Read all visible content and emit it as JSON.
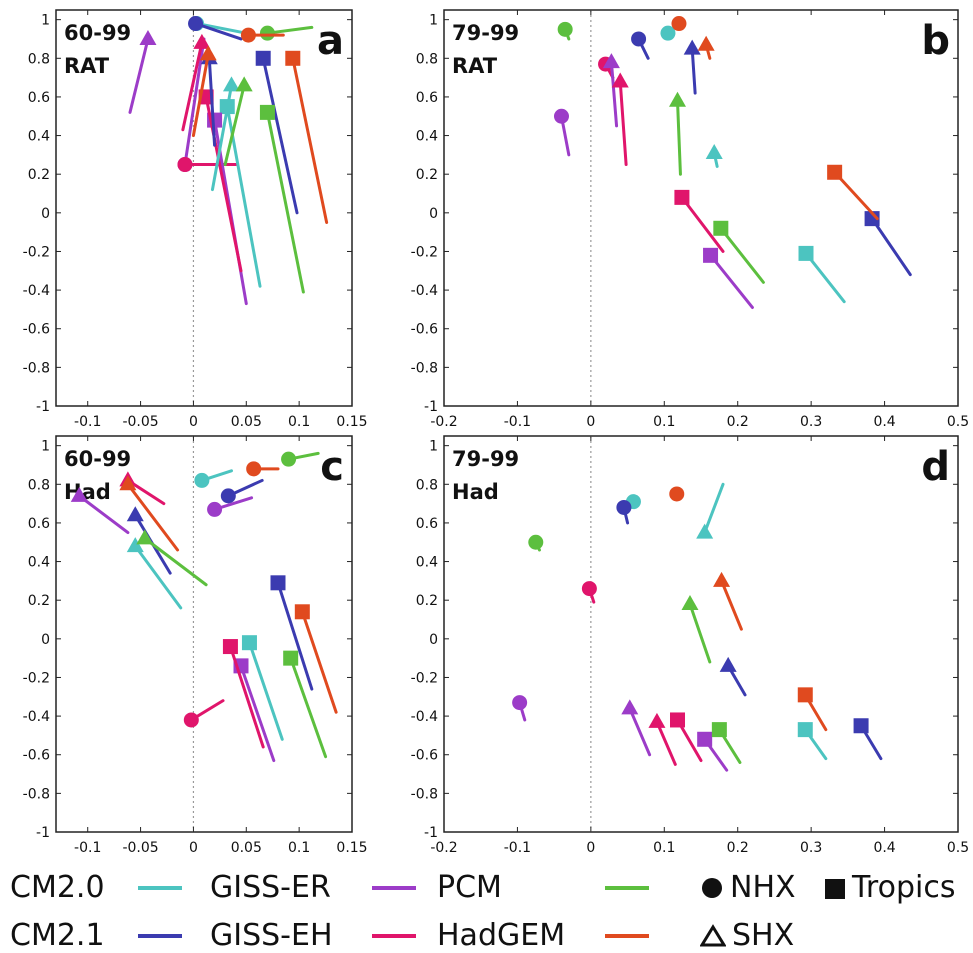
{
  "colors": {
    "CM2.0": "#4cc4c0",
    "CM2.1": "#3b3bb0",
    "GISS-ER": "#9c3cc8",
    "GISS-EH": "#e0156b",
    "PCM": "#5cbf3e",
    "HadGEM": "#e04a1f"
  },
  "legend": {
    "models": [
      "CM2.0",
      "CM2.1",
      "GISS-ER",
      "GISS-EH",
      "PCM",
      "HadGEM"
    ],
    "regions": [
      {
        "name": "NHX",
        "marker": "circle"
      },
      {
        "name": "Tropics",
        "marker": "square"
      },
      {
        "name": "SHX",
        "marker": "triangle"
      }
    ]
  },
  "chart_data": [
    {
      "panel": "a",
      "type": "scatter",
      "label_period": "60-99",
      "label_dataset": "RAT",
      "xlim": [
        -0.13,
        0.15
      ],
      "ylim": [
        1.05,
        -1.0
      ],
      "xticks": [
        -0.1,
        -0.05,
        0,
        0.05,
        0.1,
        0.15
      ],
      "xtick_labels": [
        "-0.1",
        "-0.05",
        "0",
        "0.05",
        "0.1",
        "0.15"
      ],
      "yticks": [
        -1,
        -0.8,
        -0.6,
        -0.4,
        -0.2,
        0,
        0.2,
        0.4,
        0.6,
        0.8,
        1
      ],
      "ytick_labels": [
        "-1",
        "-0.8",
        "-0.6",
        "-0.4",
        "-0.2",
        "0",
        "0.2",
        "0.4",
        "0.6",
        "0.8",
        "1"
      ],
      "points": [
        {
          "model": "CM2.0",
          "region": "NHX",
          "x": 0.003,
          "y": 0.98,
          "x2": 0.05,
          "y2": 0.93
        },
        {
          "model": "CM2.1",
          "region": "NHX",
          "x": 0.002,
          "y": 0.98,
          "x2": 0.045,
          "y2": 0.9
        },
        {
          "model": "GISS-ER",
          "region": "NHX",
          "x": -0.008,
          "y": 0.25,
          "x2": 0.01,
          "y2": 0.9
        },
        {
          "model": "GISS-EH",
          "region": "NHX",
          "x": -0.008,
          "y": 0.25,
          "x2": 0.04,
          "y2": 0.25
        },
        {
          "model": "PCM",
          "region": "NHX",
          "x": 0.07,
          "y": 0.93,
          "x2": 0.112,
          "y2": 0.96
        },
        {
          "model": "HadGEM",
          "region": "NHX",
          "x": 0.052,
          "y": 0.92,
          "x2": 0.085,
          "y2": 0.92
        },
        {
          "model": "CM2.0",
          "region": "Tropics",
          "x": 0.032,
          "y": 0.55,
          "x2": 0.063,
          "y2": -0.38
        },
        {
          "model": "CM2.1",
          "region": "Tropics",
          "x": 0.066,
          "y": 0.8,
          "x2": 0.098,
          "y2": 0.0
        },
        {
          "model": "GISS-ER",
          "region": "Tropics",
          "x": 0.02,
          "y": 0.48,
          "x2": 0.05,
          "y2": -0.47
        },
        {
          "model": "GISS-EH",
          "region": "Tropics",
          "x": 0.012,
          "y": 0.6,
          "x2": 0.045,
          "y2": -0.3
        },
        {
          "model": "PCM",
          "region": "Tropics",
          "x": 0.07,
          "y": 0.52,
          "x2": 0.104,
          "y2": -0.41
        },
        {
          "model": "HadGEM",
          "region": "Tropics",
          "x": 0.094,
          "y": 0.8,
          "x2": 0.126,
          "y2": -0.05
        },
        {
          "model": "CM2.0",
          "region": "SHX",
          "x": 0.036,
          "y": 0.66,
          "x2": 0.018,
          "y2": 0.12
        },
        {
          "model": "CM2.1",
          "region": "SHX",
          "x": 0.015,
          "y": 0.8,
          "x2": 0.02,
          "y2": 0.35
        },
        {
          "model": "GISS-ER",
          "region": "SHX",
          "x": -0.043,
          "y": 0.9,
          "x2": -0.06,
          "y2": 0.52
        },
        {
          "model": "GISS-EH",
          "region": "SHX",
          "x": 0.008,
          "y": 0.88,
          "x2": -0.01,
          "y2": 0.43
        },
        {
          "model": "PCM",
          "region": "SHX",
          "x": 0.048,
          "y": 0.66,
          "x2": 0.03,
          "y2": 0.25
        },
        {
          "model": "HadGEM",
          "region": "SHX",
          "x": 0.014,
          "y": 0.82,
          "x2": 0.0,
          "y2": 0.4
        }
      ]
    },
    {
      "panel": "b",
      "type": "scatter",
      "label_period": "79-99",
      "label_dataset": "RAT",
      "xlim": [
        -0.2,
        0.5
      ],
      "ylim": [
        1.05,
        -1.0
      ],
      "xticks": [
        -0.2,
        -0.1,
        0,
        0.1,
        0.2,
        0.3,
        0.4,
        0.5
      ],
      "xtick_labels": [
        "-0.2",
        "-0.1",
        "0",
        "0.1",
        "0.2",
        "0.3",
        "0.4",
        "0.5"
      ],
      "yticks": [
        -1,
        -0.8,
        -0.6,
        -0.4,
        -0.2,
        0,
        0.2,
        0.4,
        0.6,
        0.8,
        1
      ],
      "ytick_labels": [
        "-1",
        "-0.8",
        "-0.6",
        "-0.4",
        "-0.2",
        "0",
        "0.2",
        "0.4",
        "0.6",
        "0.8",
        "1"
      ],
      "points": [
        {
          "model": "CM2.0",
          "region": "NHX",
          "x": 0.105,
          "y": 0.93,
          "x2": 0.105,
          "y2": 0.93
        },
        {
          "model": "CM2.1",
          "region": "NHX",
          "x": 0.065,
          "y": 0.9,
          "x2": 0.078,
          "y2": 0.8
        },
        {
          "model": "GISS-ER",
          "region": "NHX",
          "x": -0.04,
          "y": 0.5,
          "x2": -0.03,
          "y2": 0.3
        },
        {
          "model": "GISS-EH",
          "region": "NHX",
          "x": 0.02,
          "y": 0.77,
          "x2": 0.03,
          "y2": 0.7
        },
        {
          "model": "PCM",
          "region": "NHX",
          "x": -0.035,
          "y": 0.95,
          "x2": -0.03,
          "y2": 0.9
        },
        {
          "model": "HadGEM",
          "region": "NHX",
          "x": 0.12,
          "y": 0.98,
          "x2": 0.12,
          "y2": 0.98
        },
        {
          "model": "CM2.0",
          "region": "Tropics",
          "x": 0.293,
          "y": -0.21,
          "x2": 0.345,
          "y2": -0.46
        },
        {
          "model": "CM2.1",
          "region": "Tropics",
          "x": 0.383,
          "y": -0.03,
          "x2": 0.435,
          "y2": -0.32
        },
        {
          "model": "GISS-ER",
          "region": "Tropics",
          "x": 0.163,
          "y": -0.22,
          "x2": 0.22,
          "y2": -0.49
        },
        {
          "model": "GISS-EH",
          "region": "Tropics",
          "x": 0.124,
          "y": 0.08,
          "x2": 0.18,
          "y2": -0.2
        },
        {
          "model": "PCM",
          "region": "Tropics",
          "x": 0.177,
          "y": -0.08,
          "x2": 0.235,
          "y2": -0.36
        },
        {
          "model": "HadGEM",
          "region": "Tropics",
          "x": 0.332,
          "y": 0.21,
          "x2": 0.39,
          "y2": -0.03
        },
        {
          "model": "CM2.0",
          "region": "SHX",
          "x": 0.168,
          "y": 0.31,
          "x2": 0.172,
          "y2": 0.24
        },
        {
          "model": "CM2.1",
          "region": "SHX",
          "x": 0.138,
          "y": 0.85,
          "x2": 0.142,
          "y2": 0.62
        },
        {
          "model": "GISS-ER",
          "region": "SHX",
          "x": 0.028,
          "y": 0.78,
          "x2": 0.035,
          "y2": 0.45
        },
        {
          "model": "GISS-EH",
          "region": "SHX",
          "x": 0.04,
          "y": 0.68,
          "x2": 0.048,
          "y2": 0.25
        },
        {
          "model": "PCM",
          "region": "SHX",
          "x": 0.118,
          "y": 0.58,
          "x2": 0.122,
          "y2": 0.2
        },
        {
          "model": "HadGEM",
          "region": "SHX",
          "x": 0.157,
          "y": 0.87,
          "x2": 0.162,
          "y2": 0.8
        }
      ]
    },
    {
      "panel": "c",
      "type": "scatter",
      "label_period": "60-99",
      "label_dataset": "Had",
      "xlim": [
        -0.13,
        0.15
      ],
      "ylim": [
        1.05,
        -1.0
      ],
      "xticks": [
        -0.1,
        -0.05,
        0,
        0.05,
        0.1,
        0.15
      ],
      "xtick_labels": [
        "-0.1",
        "-0.05",
        "0",
        "0.05",
        "0.1",
        "0.15"
      ],
      "yticks": [
        -1,
        -0.8,
        -0.6,
        -0.4,
        -0.2,
        0,
        0.2,
        0.4,
        0.6,
        0.8,
        1
      ],
      "ytick_labels": [
        "-1",
        "-0.8",
        "-0.6",
        "-0.4",
        "-0.2",
        "0",
        "0.2",
        "0.4",
        "0.6",
        "0.8",
        "1"
      ],
      "points": [
        {
          "model": "CM2.0",
          "region": "NHX",
          "x": 0.008,
          "y": 0.82,
          "x2": 0.036,
          "y2": 0.87
        },
        {
          "model": "CM2.1",
          "region": "NHX",
          "x": 0.033,
          "y": 0.74,
          "x2": 0.065,
          "y2": 0.82
        },
        {
          "model": "GISS-ER",
          "region": "NHX",
          "x": 0.02,
          "y": 0.67,
          "x2": 0.055,
          "y2": 0.73
        },
        {
          "model": "GISS-EH",
          "region": "NHX",
          "x": -0.002,
          "y": -0.42,
          "x2": 0.028,
          "y2": -0.32
        },
        {
          "model": "PCM",
          "region": "NHX",
          "x": 0.09,
          "y": 0.93,
          "x2": 0.118,
          "y2": 0.96
        },
        {
          "model": "HadGEM",
          "region": "NHX",
          "x": 0.057,
          "y": 0.88,
          "x2": 0.08,
          "y2": 0.88
        },
        {
          "model": "CM2.0",
          "region": "Tropics",
          "x": 0.053,
          "y": -0.02,
          "x2": 0.084,
          "y2": -0.52
        },
        {
          "model": "CM2.1",
          "region": "Tropics",
          "x": 0.08,
          "y": 0.29,
          "x2": 0.112,
          "y2": -0.26
        },
        {
          "model": "GISS-ER",
          "region": "Tropics",
          "x": 0.045,
          "y": -0.14,
          "x2": 0.076,
          "y2": -0.63
        },
        {
          "model": "GISS-EH",
          "region": "Tropics",
          "x": 0.035,
          "y": -0.04,
          "x2": 0.066,
          "y2": -0.56
        },
        {
          "model": "PCM",
          "region": "Tropics",
          "x": 0.092,
          "y": -0.1,
          "x2": 0.125,
          "y2": -0.61
        },
        {
          "model": "HadGEM",
          "region": "Tropics",
          "x": 0.103,
          "y": 0.14,
          "x2": 0.135,
          "y2": -0.38
        },
        {
          "model": "CM2.0",
          "region": "SHX",
          "x": -0.055,
          "y": 0.48,
          "x2": -0.012,
          "y2": 0.16
        },
        {
          "model": "CM2.1",
          "region": "SHX",
          "x": -0.055,
          "y": 0.64,
          "x2": -0.022,
          "y2": 0.34
        },
        {
          "model": "GISS-ER",
          "region": "SHX",
          "x": -0.108,
          "y": 0.74,
          "x2": -0.062,
          "y2": 0.55
        },
        {
          "model": "GISS-EH",
          "region": "SHX",
          "x": -0.062,
          "y": 0.82,
          "x2": -0.028,
          "y2": 0.7
        },
        {
          "model": "PCM",
          "region": "SHX",
          "x": -0.046,
          "y": 0.52,
          "x2": 0.012,
          "y2": 0.28
        },
        {
          "model": "HadGEM",
          "region": "SHX",
          "x": -0.062,
          "y": 0.8,
          "x2": -0.015,
          "y2": 0.46
        }
      ]
    },
    {
      "panel": "d",
      "type": "scatter",
      "label_period": "79-99",
      "label_dataset": "Had",
      "xlim": [
        -0.2,
        0.5
      ],
      "ylim": [
        1.05,
        -1.0
      ],
      "xticks": [
        -0.2,
        -0.1,
        0,
        0.1,
        0.2,
        0.3,
        0.4,
        0.5
      ],
      "xtick_labels": [
        "-0.2",
        "-0.1",
        "0",
        "0.1",
        "0.2",
        "0.3",
        "0.4",
        "0.5"
      ],
      "yticks": [
        -1,
        -0.8,
        -0.6,
        -0.4,
        -0.2,
        0,
        0.2,
        0.4,
        0.6,
        0.8,
        1
      ],
      "ytick_labels": [
        "-1",
        "-0.8",
        "-0.6",
        "-0.4",
        "-0.2",
        "0",
        "0.2",
        "0.4",
        "0.6",
        "0.8",
        "1"
      ],
      "points": [
        {
          "model": "CM2.0",
          "region": "NHX",
          "x": 0.058,
          "y": 0.71,
          "x2": 0.058,
          "y2": 0.71
        },
        {
          "model": "CM2.1",
          "region": "NHX",
          "x": 0.045,
          "y": 0.68,
          "x2": 0.05,
          "y2": 0.6
        },
        {
          "model": "GISS-ER",
          "region": "NHX",
          "x": -0.097,
          "y": -0.33,
          "x2": -0.09,
          "y2": -0.42
        },
        {
          "model": "GISS-EH",
          "region": "NHX",
          "x": -0.002,
          "y": 0.26,
          "x2": 0.004,
          "y2": 0.19
        },
        {
          "model": "PCM",
          "region": "NHX",
          "x": -0.075,
          "y": 0.5,
          "x2": -0.07,
          "y2": 0.46
        },
        {
          "model": "HadGEM",
          "region": "NHX",
          "x": 0.117,
          "y": 0.75,
          "x2": 0.117,
          "y2": 0.75
        },
        {
          "model": "CM2.0",
          "region": "Tropics",
          "x": 0.292,
          "y": -0.47,
          "x2": 0.32,
          "y2": -0.62
        },
        {
          "model": "CM2.1",
          "region": "Tropics",
          "x": 0.368,
          "y": -0.45,
          "x2": 0.395,
          "y2": -0.62
        },
        {
          "model": "GISS-ER",
          "region": "Tropics",
          "x": 0.155,
          "y": -0.52,
          "x2": 0.185,
          "y2": -0.68
        },
        {
          "model": "GISS-EH",
          "region": "Tropics",
          "x": 0.118,
          "y": -0.42,
          "x2": 0.15,
          "y2": -0.63
        },
        {
          "model": "PCM",
          "region": "Tropics",
          "x": 0.175,
          "y": -0.47,
          "x2": 0.203,
          "y2": -0.64
        },
        {
          "model": "HadGEM",
          "region": "Tropics",
          "x": 0.292,
          "y": -0.29,
          "x2": 0.32,
          "y2": -0.47
        },
        {
          "model": "CM2.0",
          "region": "SHX",
          "x": 0.155,
          "y": 0.55,
          "x2": 0.18,
          "y2": 0.8
        },
        {
          "model": "CM2.1",
          "region": "SHX",
          "x": 0.187,
          "y": -0.14,
          "x2": 0.21,
          "y2": -0.29
        },
        {
          "model": "GISS-ER",
          "region": "SHX",
          "x": 0.053,
          "y": -0.36,
          "x2": 0.08,
          "y2": -0.6
        },
        {
          "model": "GISS-EH",
          "region": "SHX",
          "x": 0.09,
          "y": -0.43,
          "x2": 0.115,
          "y2": -0.65
        },
        {
          "model": "PCM",
          "region": "SHX",
          "x": 0.135,
          "y": 0.18,
          "x2": 0.162,
          "y2": -0.12
        },
        {
          "model": "HadGEM",
          "region": "SHX",
          "x": 0.178,
          "y": 0.3,
          "x2": 0.205,
          "y2": 0.05
        }
      ]
    }
  ]
}
